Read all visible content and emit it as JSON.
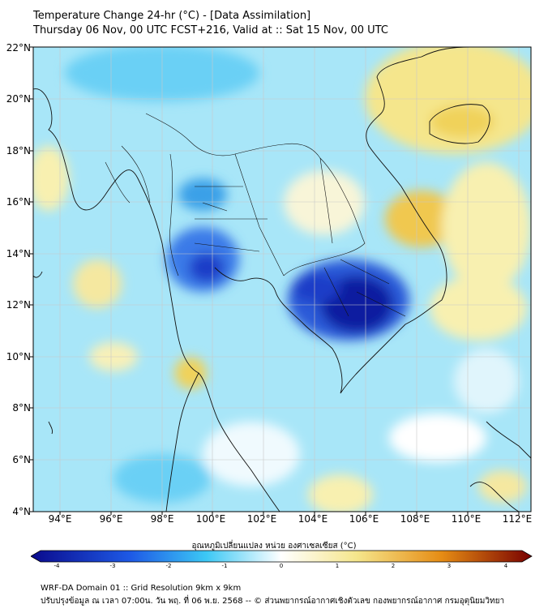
{
  "title_line1": "Temperature Change 24-hr (°C) - [Data Assimilation]",
  "title_line2": "Thursday 06 Nov, 00 UTC FCST+216, Valid at :: Sat 15 Nov, 00 UTC",
  "lat_labels": [
    "22°N",
    "20°N",
    "18°N",
    "16°N",
    "14°N",
    "12°N",
    "10°N",
    "8°N",
    "6°N",
    "4°N"
  ],
  "lon_labels": [
    "94°E",
    "96°E",
    "98°E",
    "100°E",
    "102°E",
    "104°E",
    "106°E",
    "108°E",
    "110°E",
    "112°E"
  ],
  "colorbar": {
    "label": "อุณหภูมิเปลี่ยนแปลง หน่วย องศาเซลเซียส (°C)",
    "ticks": [
      "-4",
      "-3",
      "-2",
      "-1",
      "0",
      "1",
      "2",
      "3",
      "4"
    ],
    "min": -4,
    "max": 4,
    "colors": {
      "cold_max": "#0a0a8c",
      "cold": "#1e5ae6",
      "cool": "#3cc8f5",
      "neutral": "#ffffff",
      "warm": "#f5e68c",
      "hot": "#e68c14",
      "hot_max": "#780000"
    }
  },
  "footer_line1": "WRF-DA Domain 01 :: Grid Resolution 9km x 9km",
  "footer_line2": "ปรับปรุงข้อมูล ณ เวลา 07:00น. วัน พฤ. ที่ 06 พ.ย. 2568 -- © ส่วนพยากรณ์อากาศเชิงตัวเลข กองพยากรณ์อากาศ กรมอุตุนิยมวิทยา"
}
